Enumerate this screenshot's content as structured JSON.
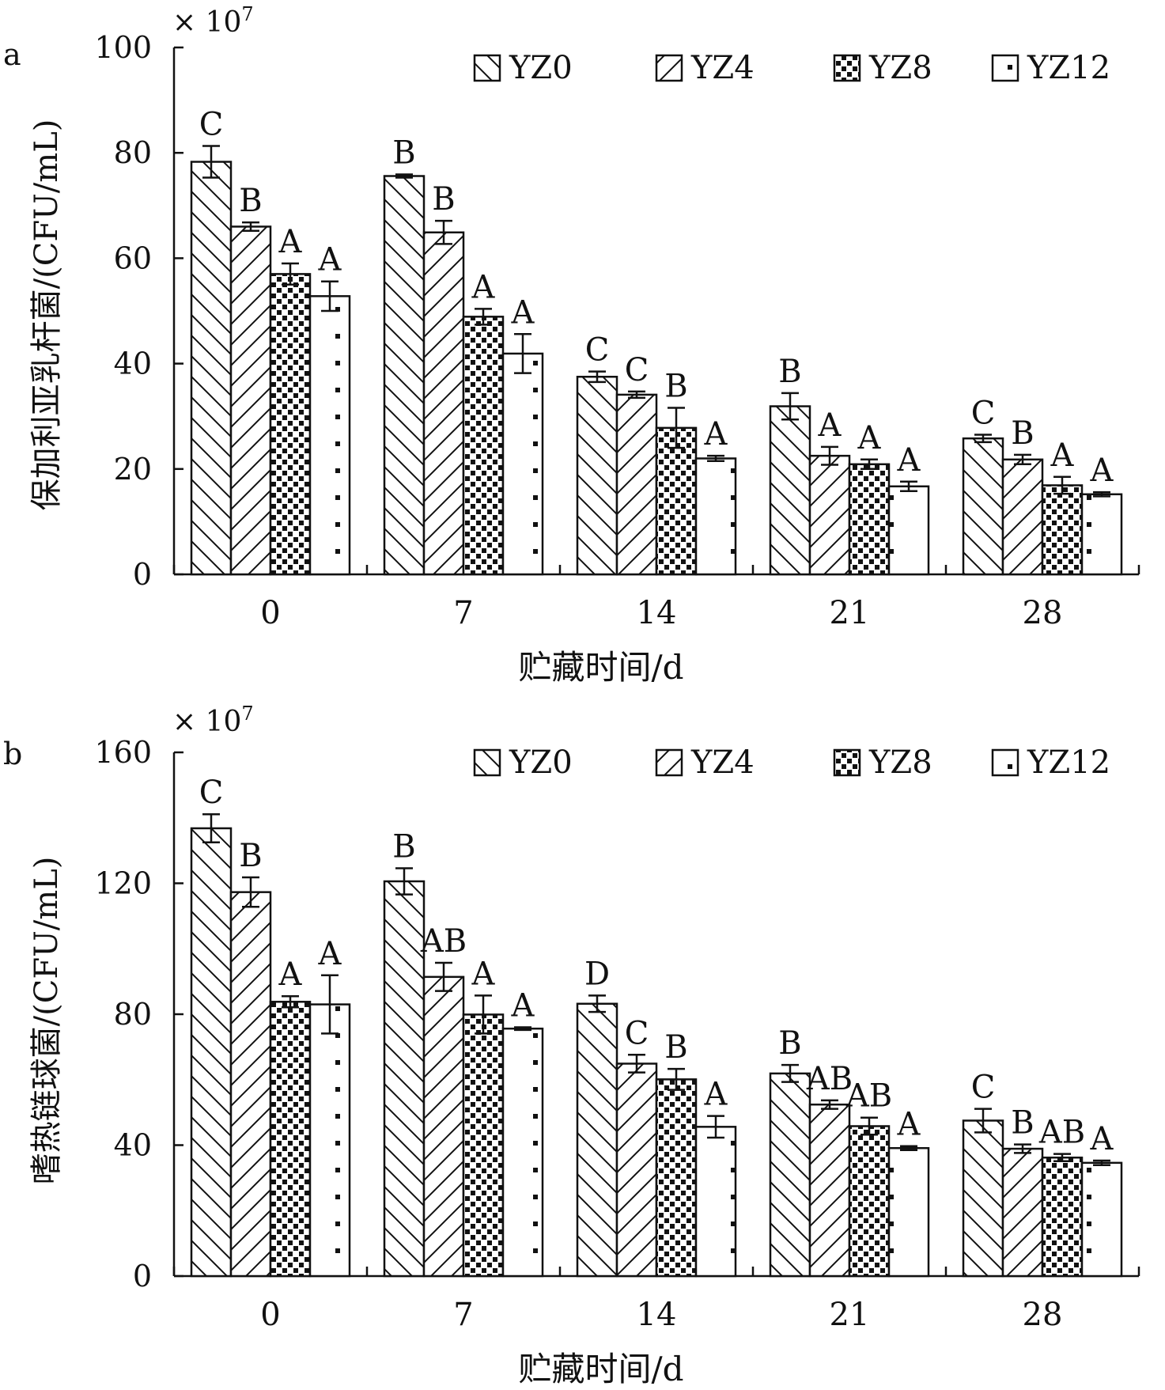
{
  "chart_data": [
    {
      "panel_label": "a",
      "type": "bar",
      "multiplier_label": "× 10",
      "multiplier_exponent": "7",
      "ylabel": "保加利亚乳杆菌/(CFU/mL)",
      "xlabel": "贮藏时间/d",
      "ylim": [
        0,
        100
      ],
      "yticks": [
        "0",
        "20",
        "40",
        "60",
        "80",
        "100"
      ],
      "categories": [
        "0",
        "7",
        "14",
        "21",
        "28"
      ],
      "legend_position": "top-right",
      "grid": false,
      "series": [
        {
          "name": "YZ0",
          "pattern": "backslash",
          "values": [
            78.3,
            75.6,
            37.5,
            31.9,
            25.8
          ],
          "errors": [
            3.0,
            0.3,
            1.0,
            2.5,
            0.7
          ],
          "letters": [
            "C",
            "B",
            "C",
            "B",
            "C"
          ]
        },
        {
          "name": "YZ4",
          "pattern": "slash",
          "values": [
            66.0,
            64.9,
            34.1,
            22.5,
            21.8
          ],
          "errors": [
            0.8,
            2.2,
            0.6,
            1.7,
            0.9
          ],
          "letters": [
            "B",
            "B",
            "C",
            "A",
            "B"
          ]
        },
        {
          "name": "YZ8",
          "pattern": "dense-dots",
          "values": [
            57.0,
            48.9,
            27.8,
            20.9,
            16.9
          ],
          "errors": [
            2.0,
            1.5,
            3.8,
            0.9,
            1.6
          ],
          "letters": [
            "A",
            "A",
            "B",
            "A",
            "A"
          ]
        },
        {
          "name": "YZ12",
          "pattern": "sparse-dots",
          "values": [
            52.8,
            41.9,
            22.0,
            16.7,
            15.2
          ],
          "errors": [
            2.8,
            3.7,
            0.5,
            0.9,
            0.4
          ],
          "letters": [
            "A",
            "A",
            "A",
            "A",
            "A"
          ]
        }
      ]
    },
    {
      "panel_label": "b",
      "type": "bar",
      "multiplier_label": "× 10",
      "multiplier_exponent": "7",
      "ylabel": "嗜热链球菌/(CFU/mL)",
      "xlabel": "贮藏时间/d",
      "ylim": [
        0,
        160
      ],
      "yticks": [
        "0",
        "40",
        "80",
        "120",
        "160"
      ],
      "categories": [
        "0",
        "7",
        "14",
        "21",
        "28"
      ],
      "legend_position": "top-right",
      "grid": false,
      "series": [
        {
          "name": "YZ0",
          "pattern": "backslash",
          "values": [
            136.8,
            120.6,
            83.2,
            61.9,
            47.5
          ],
          "errors": [
            4.3,
            4.0,
            2.5,
            2.6,
            3.6
          ],
          "letters": [
            "C",
            "B",
            "D",
            "B",
            "C"
          ]
        },
        {
          "name": "YZ4",
          "pattern": "slash",
          "values": [
            117.3,
            91.4,
            64.9,
            52.4,
            38.9
          ],
          "errors": [
            4.5,
            4.3,
            2.7,
            1.3,
            1.3
          ],
          "letters": [
            "B",
            "AB",
            "C",
            "AB",
            "B"
          ]
        },
        {
          "name": "YZ8",
          "pattern": "dense-dots",
          "values": [
            83.8,
            79.9,
            60.1,
            45.8,
            36.2
          ],
          "errors": [
            1.7,
            5.8,
            3.2,
            2.6,
            1.1
          ],
          "letters": [
            "A",
            "A",
            "B",
            "AB",
            "AB"
          ]
        },
        {
          "name": "YZ12",
          "pattern": "sparse-dots",
          "values": [
            83.0,
            75.6,
            45.6,
            39.1,
            34.6
          ],
          "errors": [
            8.9,
            0.4,
            3.3,
            0.6,
            0.7
          ],
          "letters": [
            "A",
            "A",
            "A",
            "A",
            "A"
          ]
        }
      ]
    }
  ]
}
